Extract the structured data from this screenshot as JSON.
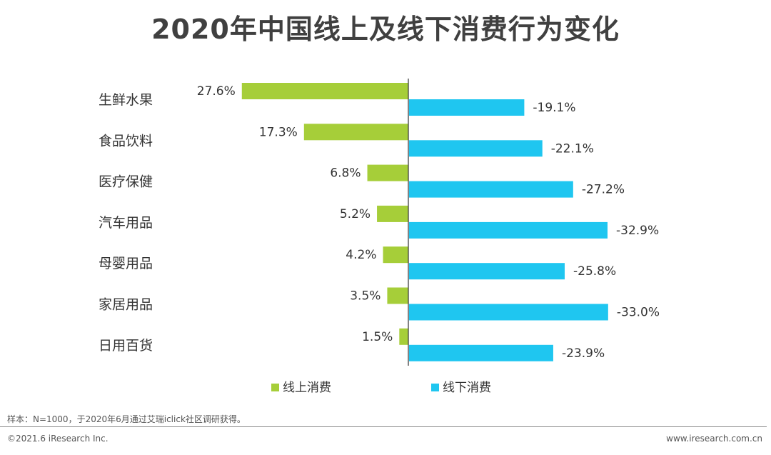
{
  "title": "2020年中国线上及线下消费行为变化",
  "colors": {
    "online": "#A6CE39",
    "offline": "#1FC6F0",
    "axis": "#404040"
  },
  "chart_data": {
    "type": "bar",
    "orientation": "horizontal-diverging",
    "categories": [
      "生鲜水果",
      "食品饮料",
      "医疗保健",
      "汽车用品",
      "母婴用品",
      "家居用品",
      "日用百货"
    ],
    "series": [
      {
        "name": "线上消费",
        "values": [
          27.6,
          17.3,
          6.8,
          5.2,
          4.2,
          3.5,
          1.5
        ],
        "labels": [
          "27.6%",
          "17.3%",
          "6.8%",
          "5.2%",
          "4.2%",
          "3.5%",
          "1.5%"
        ]
      },
      {
        "name": "线下消费",
        "values": [
          -19.1,
          -22.1,
          -27.2,
          -32.9,
          -25.8,
          -33.0,
          -23.9
        ],
        "labels": [
          "-19.1%",
          "-22.1%",
          "-27.2%",
          "-32.9%",
          "-25.8%",
          "-33.0%",
          "-23.9%"
        ]
      }
    ],
    "legend_position": "bottom"
  },
  "footer": {
    "note": "样本：N=1000，于2020年6月通过艾瑞iclick社区调研获得。",
    "copyright": "©2021.6 iResearch Inc.",
    "website": "www.iresearch.com.cn"
  }
}
